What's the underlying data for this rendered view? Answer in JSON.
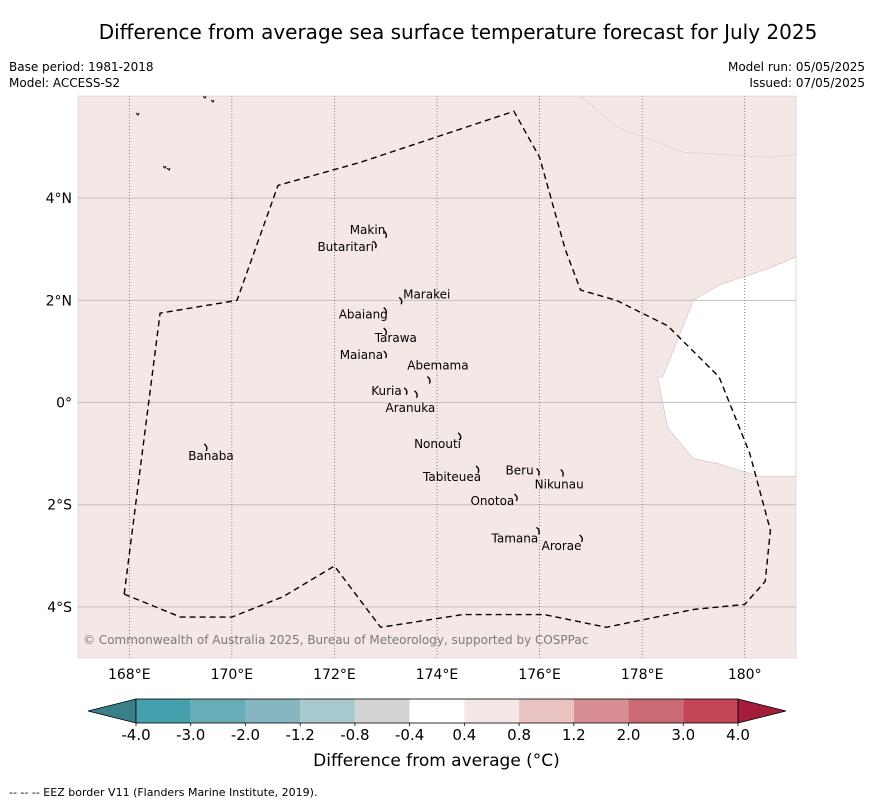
{
  "title": "Difference from average sea surface temperature forecast for July 2025",
  "base_period": "Base period: 1981-2018",
  "model": "Model: ACCESS-S2",
  "model_run": "Model run: 05/05/2025",
  "issued": "Issued: 07/05/2025",
  "copyright": "© Commonwealth of Australia 2025, Bureau of Meteorology, supported by COSPPac",
  "footnote": "--  --  -- EEZ border V11 (Flanders Marine Institute, 2019).",
  "map": {
    "lon_range": [
      167,
      181
    ],
    "lat_range": [
      -5,
      6
    ],
    "lon_ticks": [
      {
        "value": 168,
        "label": "168°E"
      },
      {
        "value": 170,
        "label": "170°E"
      },
      {
        "value": 172,
        "label": "172°E"
      },
      {
        "value": 174,
        "label": "174°E"
      },
      {
        "value": 176,
        "label": "176°E"
      },
      {
        "value": 178,
        "label": "178°E"
      },
      {
        "value": 180,
        "label": "180°"
      }
    ],
    "lat_ticks": [
      {
        "value": 4,
        "label": "4°N"
      },
      {
        "value": 2,
        "label": "2°N"
      },
      {
        "value": 0,
        "label": "0°"
      },
      {
        "value": -2,
        "label": "2°S"
      },
      {
        "value": -4,
        "label": "4°S"
      }
    ],
    "background_color": "#f4e8e7",
    "neutral_color": "#ffffff",
    "neutral_region": [
      [
        181,
        2.85
      ],
      [
        180.4,
        2.6
      ],
      [
        179.5,
        2.3
      ],
      [
        179,
        2.0
      ],
      [
        178.8,
        1.5
      ],
      [
        178.4,
        0.5
      ],
      [
        178.3,
        0.5
      ],
      [
        178.5,
        -0.5
      ],
      [
        179.0,
        -1.1
      ],
      [
        179.5,
        -1.2
      ],
      [
        180.3,
        -1.45
      ],
      [
        181,
        -1.45
      ]
    ],
    "eez_border": [
      [
        167.9,
        -3.75
      ],
      [
        168.6,
        1.75
      ],
      [
        170.1,
        2.0
      ],
      [
        170.9,
        4.25
      ],
      [
        172.5,
        4.7
      ],
      [
        175.5,
        5.7
      ],
      [
        176.0,
        4.8
      ],
      [
        176.5,
        3.0
      ],
      [
        176.8,
        2.2
      ],
      [
        177.5,
        2.0
      ],
      [
        178.5,
        1.5
      ],
      [
        179.5,
        0.5
      ],
      [
        180.1,
        -1.0
      ],
      [
        180.5,
        -2.5
      ],
      [
        180.4,
        -3.5
      ],
      [
        180.0,
        -3.95
      ],
      [
        179.0,
        -4.05
      ],
      [
        177.3,
        -4.4
      ],
      [
        176.1,
        -4.15
      ],
      [
        174.5,
        -4.15
      ],
      [
        172.9,
        -4.4
      ],
      [
        172.0,
        -3.2
      ],
      [
        171.0,
        -3.8
      ],
      [
        170.0,
        -4.2
      ],
      [
        169.0,
        -4.2
      ],
      [
        167.9,
        -3.75
      ]
    ],
    "islands": [
      {
        "name": "Makin",
        "lon": 173.0,
        "lat": 3.3
      },
      {
        "name": "Butaritari",
        "lon": 172.8,
        "lat": 3.1
      },
      {
        "name": "Marakei",
        "lon": 173.3,
        "lat": 2.0
      },
      {
        "name": "Abaiang",
        "lon": 173.0,
        "lat": 1.8
      },
      {
        "name": "Tarawa",
        "lon": 173.0,
        "lat": 1.4
      },
      {
        "name": "Maiana",
        "lon": 173.0,
        "lat": 0.95
      },
      {
        "name": "Abemama",
        "lon": 173.85,
        "lat": 0.45
      },
      {
        "name": "Kuria",
        "lon": 173.4,
        "lat": 0.23
      },
      {
        "name": "Aranuka",
        "lon": 173.6,
        "lat": 0.17
      },
      {
        "name": "Nonouti",
        "lon": 174.45,
        "lat": -0.65
      },
      {
        "name": "Banaba",
        "lon": 169.5,
        "lat": -0.87
      },
      {
        "name": "Beru",
        "lon": 175.98,
        "lat": -1.35
      },
      {
        "name": "Nikunau",
        "lon": 176.45,
        "lat": -1.37
      },
      {
        "name": "Tabiteuea",
        "lon": 174.8,
        "lat": -1.3
      },
      {
        "name": "Onotoa",
        "lon": 175.55,
        "lat": -1.85
      },
      {
        "name": "Tamana",
        "lon": 175.98,
        "lat": -2.5
      },
      {
        "name": "Arorae",
        "lon": 176.82,
        "lat": -2.65
      }
    ]
  },
  "colorbar": {
    "title": "Difference from average (°C)",
    "boundaries": [
      "-4.0",
      "-3.0",
      "-2.0",
      "-1.2",
      "-0.8",
      "-0.4",
      "0.4",
      "0.8",
      "1.2",
      "2.0",
      "3.0",
      "4.0"
    ],
    "under_color": "#3b7f88",
    "over_color": "#a51c3d",
    "colors": [
      "#45a0ae",
      "#67adb8",
      "#86b6c0",
      "#a7c8cc",
      "#d3d3d3",
      "#ffffff",
      "#f4e8e7",
      "#e8c3c2",
      "#d88e93",
      "#cc6a74",
      "#c24555"
    ]
  }
}
